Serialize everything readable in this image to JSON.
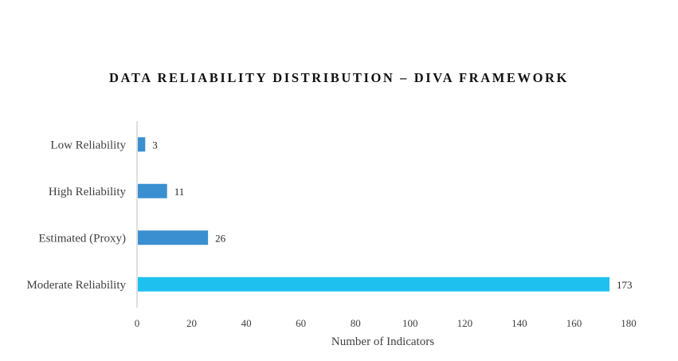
{
  "chart_data": {
    "type": "bar",
    "orientation": "horizontal",
    "title": "DATA RELIABILITY DISTRIBUTION – DIVA FRAMEWORK",
    "xlabel": "Number of Indicators",
    "ylabel": "",
    "categories": [
      "Low Reliability",
      "High Reliability",
      "Estimated (Proxy)",
      "Moderate Reliability"
    ],
    "values": [
      3,
      11,
      26,
      173
    ],
    "data_labels": [
      "3",
      "11",
      "26",
      "173"
    ],
    "xlim": [
      0,
      180
    ],
    "xticks": [
      0,
      20,
      40,
      60,
      80,
      100,
      120,
      140,
      160,
      180
    ],
    "grid": false,
    "legend": "none",
    "colors": [
      "#3a8fd0",
      "#3a8fd0",
      "#3a8fd0",
      "#1ec0f0"
    ],
    "axis_color": "#bfbfbf"
  }
}
